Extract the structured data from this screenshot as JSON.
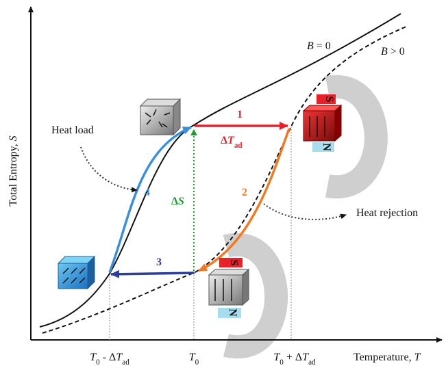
{
  "axes": {
    "y_label": [
      {
        "text": "Total Entropy, ",
        "kind": "plain"
      },
      {
        "text": "S",
        "kind": "var"
      }
    ],
    "x_label": [
      {
        "text": "Temperature, ",
        "kind": "plain"
      },
      {
        "text": "T",
        "kind": "var"
      }
    ],
    "tick_labels": [
      [
        {
          "text": "T",
          "kind": "var"
        },
        {
          "text": "0",
          "kind": "sub"
        },
        {
          "text": " - Δ",
          "kind": "plain"
        },
        {
          "text": "T",
          "kind": "var"
        },
        {
          "text": "ad",
          "kind": "sub"
        }
      ],
      [
        {
          "text": "T",
          "kind": "var"
        },
        {
          "text": "0",
          "kind": "sub"
        }
      ],
      [
        {
          "text": "T",
          "kind": "var"
        },
        {
          "text": "0",
          "kind": "sub"
        },
        {
          "text": " + Δ",
          "kind": "plain"
        },
        {
          "text": "T",
          "kind": "var"
        },
        {
          "text": "ad",
          "kind": "sub"
        }
      ]
    ]
  },
  "curves": [
    [
      {
        "text": "B",
        "kind": "var"
      },
      {
        "text": " = 0",
        "kind": "plain"
      }
    ],
    [
      {
        "text": "B",
        "kind": "var"
      },
      {
        "text": " > 0",
        "kind": "plain"
      }
    ]
  ],
  "steps": [
    "1",
    "2",
    "3",
    "4"
  ],
  "delta_t": [
    {
      "text": "Δ",
      "kind": "bold"
    },
    {
      "text": "T",
      "kind": "boldvar"
    },
    {
      "text": "ad",
      "kind": "boldsub"
    }
  ],
  "delta_s": [
    {
      "text": "Δ",
      "kind": "bold"
    },
    {
      "text": "S",
      "kind": "boldvar"
    }
  ],
  "annotations": {
    "heat_load": "Heat load",
    "heat_rejection": "Heat rejection"
  },
  "magnets": [
    {
      "south": "S",
      "north": "N"
    },
    {
      "south": "S",
      "north": "N"
    }
  ]
}
